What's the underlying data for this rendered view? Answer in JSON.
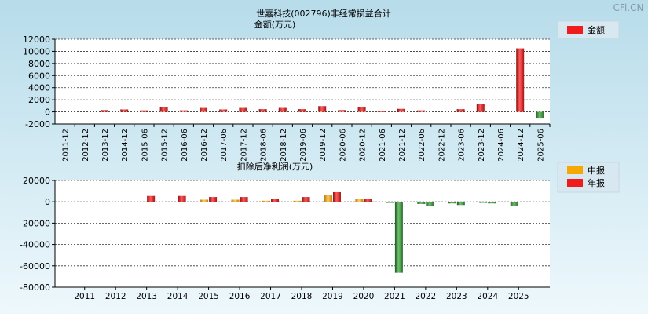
{
  "watermark": "CFi.CN",
  "colors": {
    "bg_top": "#b7dcea",
    "bg_bottom": "#eef8fc",
    "plot_bg": "#ffffff",
    "red": "#e02525",
    "orange": "#f0a020",
    "green": "#3e8e3e",
    "grid": "#333333"
  },
  "chart_data": [
    {
      "type": "bar",
      "title": "世嘉科技(002796)非经常损益合计",
      "subtitle": "金额(万元)",
      "ylim": [
        -2000,
        12000
      ],
      "yticks": [
        -2000,
        0,
        2000,
        4000,
        6000,
        8000,
        10000,
        12000
      ],
      "grid": true,
      "legend_position": "top-right",
      "categories": [
        "2011-12",
        "2012-12",
        "2013-12",
        "2014-12",
        "2015-06",
        "2015-12",
        "2016-06",
        "2016-12",
        "2017-06",
        "2017-12",
        "2018-06",
        "2018-12",
        "2019-06",
        "2019-12",
        "2020-06",
        "2020-12",
        "2021-06",
        "2021-12",
        "2022-06",
        "2022-12",
        "2023-06",
        "2023-12",
        "2024-06",
        "2024-12",
        "2025-06"
      ],
      "series": [
        {
          "name": "金额",
          "values": [
            0,
            0,
            300,
            400,
            250,
            800,
            250,
            650,
            400,
            650,
            450,
            650,
            450,
            950,
            300,
            800,
            100,
            500,
            250,
            0,
            450,
            1300,
            0,
            10500,
            -1100
          ]
        }
      ]
    },
    {
      "type": "bar",
      "title": "扣除后净利润(万元)",
      "ylim": [
        -80000,
        20000
      ],
      "yticks": [
        -80000,
        -60000,
        -40000,
        -20000,
        0,
        20000
      ],
      "grid": true,
      "legend_position": "top-right",
      "categories": [
        "2011",
        "2012",
        "2013",
        "2014",
        "2015",
        "2016",
        "2017",
        "2018",
        "2019",
        "2020",
        "2021",
        "2022",
        "2023",
        "2024",
        "2025"
      ],
      "series": [
        {
          "name": "中报",
          "values": [
            null,
            null,
            null,
            null,
            2000,
            2000,
            1000,
            1000,
            6500,
            3000,
            -1000,
            -2000,
            -1500,
            -1000,
            -3500
          ]
        },
        {
          "name": "年报",
          "values": [
            null,
            null,
            5500,
            5500,
            4500,
            4500,
            2500,
            4500,
            9000,
            3000,
            -66500,
            -4000,
            -3000,
            -1500,
            null
          ]
        }
      ]
    }
  ]
}
